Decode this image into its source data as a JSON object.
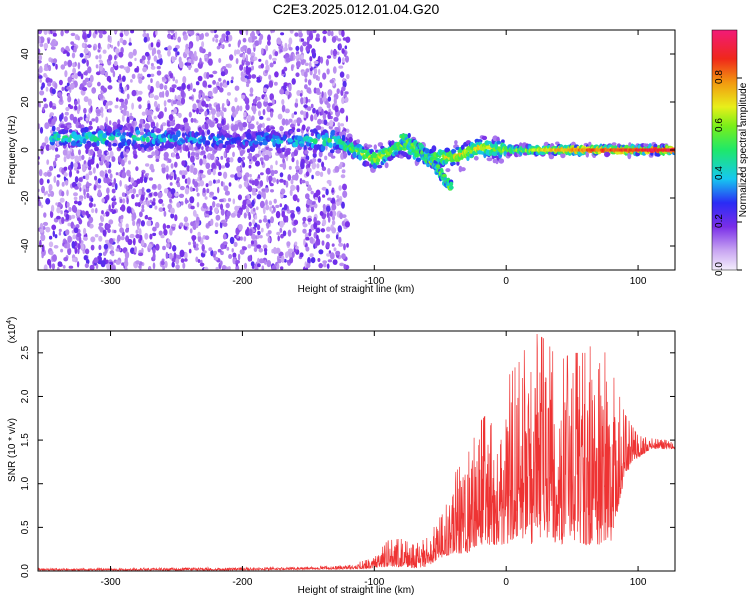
{
  "title": "C2E3.2025.012.01.04.G20",
  "chart_data": [
    {
      "type": "heatmap",
      "xlabel": "Height of straight line (km)",
      "ylabel": "Frequency (Hz)",
      "xlim": [
        -355,
        128
      ],
      "ylim": [
        -50,
        50
      ],
      "xticks": [
        -300,
        -200,
        -100,
        0,
        100
      ],
      "yticks": [
        -40,
        -20,
        0,
        20,
        40
      ],
      "colorbar": {
        "label": "Normalized spectral amplitude",
        "range": [
          0,
          1
        ],
        "ticks": [
          "0.0",
          "0.2",
          "0.4",
          "0.6",
          "0.8"
        ],
        "colormap": "rainbow (white/light violet low → blue → cyan → green → yellow → red → magenta high)"
      },
      "grid": false,
      "features": {
        "noise_region_km": [
          -355,
          -130
        ],
        "main_ridge": [
          {
            "x": -285,
            "freq": 5,
            "amp": 0.45
          },
          {
            "x": -200,
            "freq": 4,
            "amp": 0.3
          },
          {
            "x": -130,
            "freq": 4,
            "amp": 0.5
          },
          {
            "x": -100,
            "freq": -4,
            "amp": 0.7
          },
          {
            "x": -80,
            "freq": 2,
            "amp": 0.6
          },
          {
            "x": -60,
            "freq": -3,
            "amp": 0.6
          },
          {
            "x": -40,
            "freq": -3,
            "amp": 0.7
          },
          {
            "x": -20,
            "freq": 1,
            "amp": 0.7
          },
          {
            "x": 0,
            "freq": 0,
            "amp": 0.6
          },
          {
            "x": 50,
            "freq": 0,
            "amp": 0.85
          },
          {
            "x": 100,
            "freq": 0,
            "amp": 0.95
          },
          {
            "x": 128,
            "freq": 0,
            "amp": 1.0
          }
        ],
        "descending_branch": [
          {
            "x": -80,
            "freq": 5
          },
          {
            "x": -65,
            "freq": 0
          },
          {
            "x": -55,
            "freq": -6
          },
          {
            "x": -42,
            "freq": -16
          }
        ]
      }
    },
    {
      "type": "line",
      "xlabel": "Height of straight line (km)",
      "ylabel": "SNR (10 * v/v)",
      "yscale_note": "(x10",
      "yscale_exp": "4",
      "xlim": [
        -355,
        128
      ],
      "ylim": [
        0,
        2.75
      ],
      "xticks": [
        -300,
        -200,
        -100,
        0,
        100
      ],
      "yticks": [
        "0.0",
        "0.5",
        "1.0",
        "1.5",
        "2.0",
        "2.5"
      ],
      "color": "#ee3333",
      "grid": false,
      "series": [
        {
          "x": [
            -355,
            -300,
            -250,
            -200,
            -150,
            -120,
            -100,
            -90,
            -80,
            -70,
            -60,
            -50,
            -40,
            -30,
            -20,
            -10,
            0,
            10,
            20,
            30,
            40,
            50,
            60,
            70,
            80,
            90,
            100,
            110,
            120,
            128
          ],
          "envelope_low": [
            0.01,
            0.01,
            0.01,
            0.01,
            0.02,
            0.02,
            0.03,
            0.05,
            0.05,
            0.03,
            0.05,
            0.15,
            0.2,
            0.2,
            0.3,
            0.3,
            0.3,
            0.4,
            0.3,
            0.35,
            0.3,
            0.35,
            0.3,
            0.3,
            0.35,
            1.1,
            1.3,
            1.4,
            1.4,
            1.4
          ],
          "envelope_high": [
            0.03,
            0.03,
            0.04,
            0.04,
            0.05,
            0.07,
            0.15,
            0.35,
            0.37,
            0.3,
            0.38,
            0.7,
            1.1,
            1.3,
            1.7,
            1.9,
            2.2,
            2.4,
            2.75,
            2.65,
            2.4,
            2.5,
            2.5,
            2.7,
            2.3,
            1.8,
            1.55,
            1.52,
            1.5,
            1.5
          ]
        }
      ]
    }
  ]
}
